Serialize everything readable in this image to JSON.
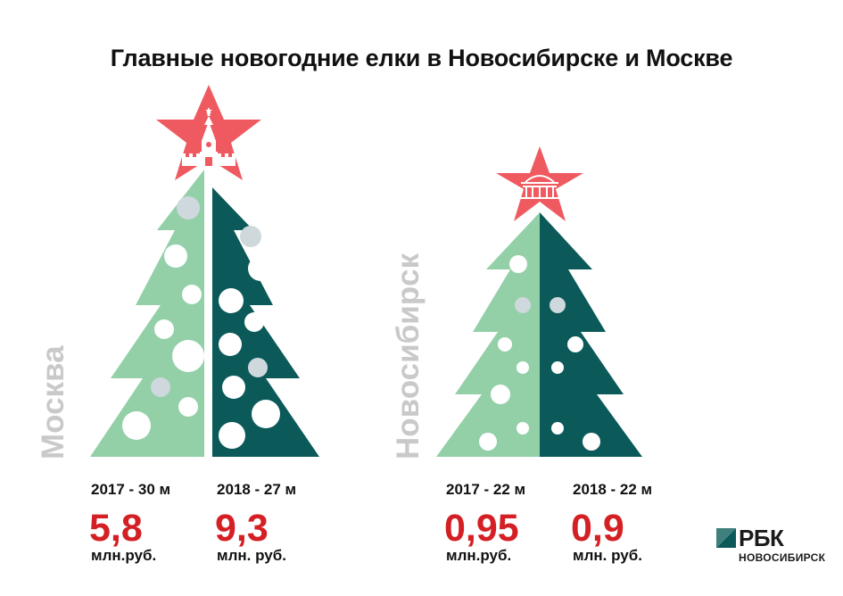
{
  "title": "Главные новогодние елки в Новосибирске и Москве",
  "colors": {
    "light_green": "#93d0a8",
    "dark_teal": "#0b5a59",
    "star_red": "#ef5a61",
    "value_red": "#d42024",
    "ornament_white": "#ffffff",
    "ornament_grey": "#cfd8dc",
    "city_label_grey": "#c9c9c9"
  },
  "cities": {
    "moscow": {
      "label": "Москва",
      "y2017": {
        "label": "2017 - 30 м",
        "value": "5,8",
        "unit": "млн.руб."
      },
      "y2018": {
        "label": "2018 - 27 м",
        "value": "9,3",
        "unit": "млн. руб."
      }
    },
    "novosibirsk": {
      "label": "Новосибирск",
      "y2017": {
        "label": "2017 - 22 м",
        "value": "0,95",
        "unit": "млн.руб."
      },
      "y2018": {
        "label": "2018 - 22 м",
        "value": "0,9",
        "unit": "млн. руб."
      }
    }
  },
  "icons": [
    "kremlin-tower-icon",
    "opera-theatre-icon",
    "star-icon",
    "rbc-logo-icon"
  ],
  "logo": {
    "name": "РБК",
    "sub": "НОВОСИБИРСК",
    "color": "#0b5a59"
  }
}
